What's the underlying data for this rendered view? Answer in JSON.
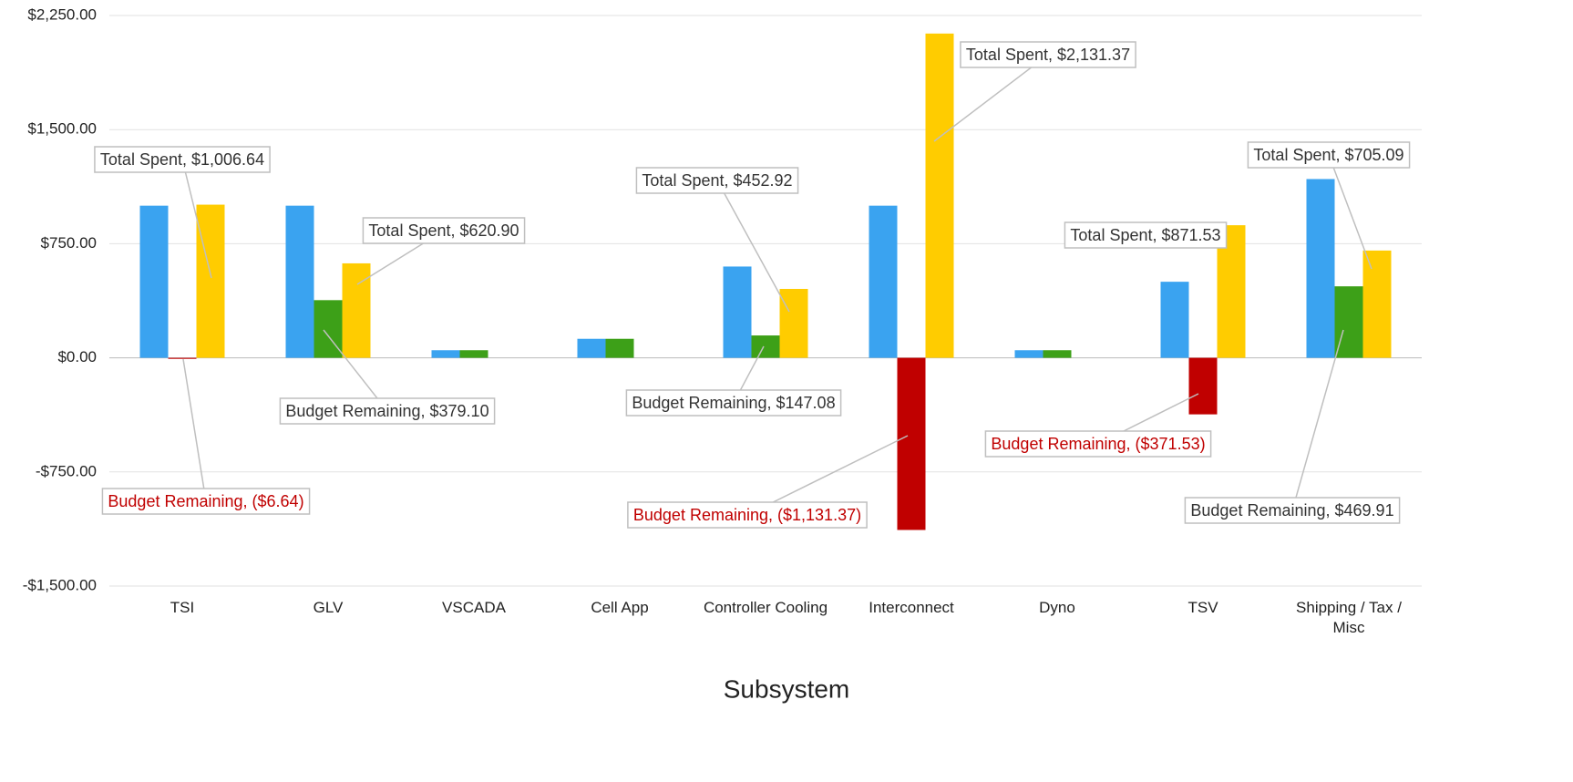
{
  "chart_data": {
    "type": "bar",
    "x_label": "Subsystem",
    "categories": [
      "TSI",
      "GLV",
      "VSCADA",
      "Cell App",
      "Controller Cooling",
      "Interconnect",
      "Dyno",
      "TSV",
      "Shipping / Tax / Misc"
    ],
    "series": [
      {
        "color": "#3aa3f0",
        "values": [
          1000,
          1000,
          50,
          125,
          600,
          1000,
          50,
          500,
          1175
        ]
      },
      {
        "name": "Budget Remaining",
        "color": "#3da018",
        "negative_color": "#c00000",
        "values": [
          -6.64,
          379.1,
          50,
          125,
          147.08,
          -1131.37,
          50,
          -371.53,
          469.91
        ],
        "value_labels": [
          "($6.64)",
          "$379.10",
          null,
          null,
          "$147.08",
          "($1,131.37)",
          null,
          "($371.53)",
          "$469.91"
        ]
      },
      {
        "name": "Total Spent",
        "color": "#ffcc00",
        "values": [
          1006.64,
          620.9,
          0,
          0,
          452.92,
          2131.37,
          0,
          871.53,
          705.09
        ],
        "value_labels": [
          "$1,006.64",
          "$620.90",
          null,
          null,
          "$452.92",
          "$2,131.37",
          null,
          "$871.53",
          "$705.09"
        ]
      }
    ],
    "ylim": [
      -1500,
      2250
    ],
    "yticks": [
      {
        "value": -1500,
        "label": "-$1,500.00"
      },
      {
        "value": -750,
        "label": "-$750.00"
      },
      {
        "value": 0,
        "label": "$0.00"
      },
      {
        "value": 750,
        "label": "$750.00"
      },
      {
        "value": 1500,
        "label": "$1,500.00"
      },
      {
        "value": 2250,
        "label": "$2,250.00"
      }
    ],
    "grid": true
  }
}
